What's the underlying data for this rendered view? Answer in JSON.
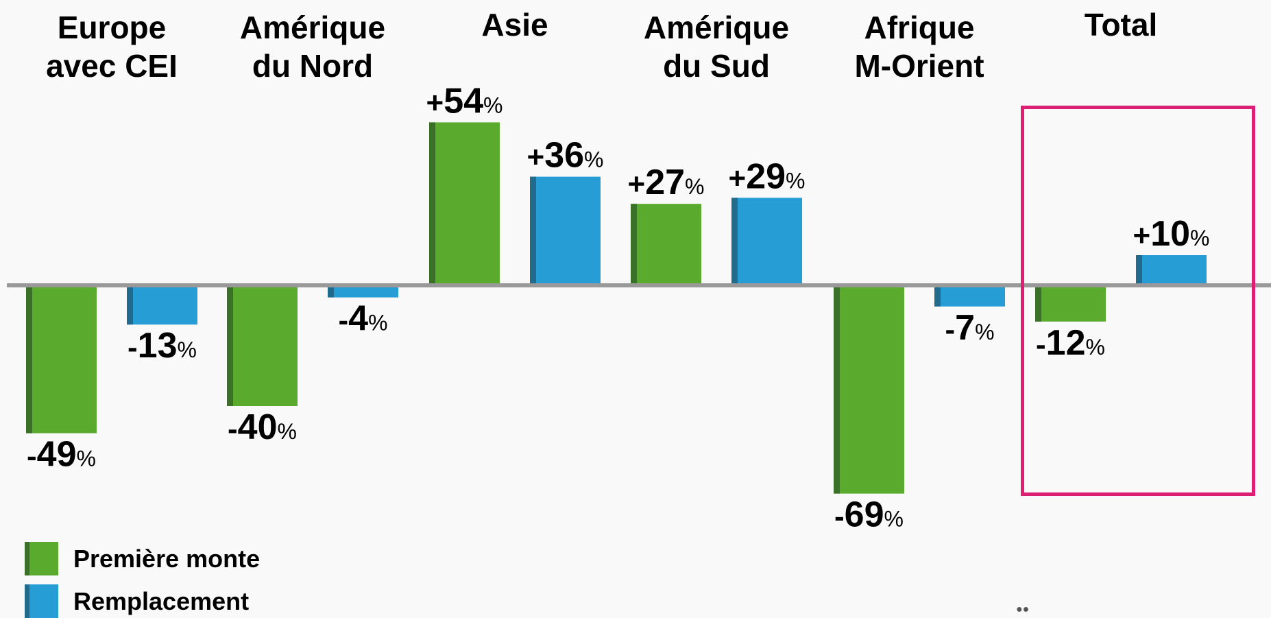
{
  "chart_data": {
    "type": "bar",
    "categories": [
      "Europe\navec CEI",
      "Amérique\ndu Nord",
      "Asie",
      "Amérique\ndu Sud",
      "Afrique\nM-Orient",
      "Total"
    ],
    "series": [
      {
        "name": "Première monte",
        "values": [
          -49,
          -40,
          54,
          27,
          -69,
          -12
        ],
        "color": "#5aaa2d",
        "edge_color": "#3b7029"
      },
      {
        "name": "Remplacement",
        "values": [
          -13,
          -4,
          36,
          29,
          -7,
          10
        ],
        "color": "#279dd5",
        "edge_color": "#236b8d"
      }
    ],
    "value_labels": [
      [
        "-49",
        "-40",
        "+54",
        "+27",
        "-69",
        "-12"
      ],
      [
        "-13",
        "-4",
        "+36",
        "+29",
        "-7",
        "+10"
      ]
    ],
    "unit_suffix": "%",
    "ylim": [
      -75,
      60
    ],
    "grid": false,
    "legend_position": "bottom-left",
    "highlighted_category": "Total",
    "highlight_color": "#dd1f74",
    "baseline_color": "#999999"
  },
  "legend": {
    "items": [
      {
        "label": "Première monte"
      },
      {
        "label": "Remplacement"
      }
    ]
  },
  "footer": {
    "icon": "michelin-man-logo-icon"
  }
}
